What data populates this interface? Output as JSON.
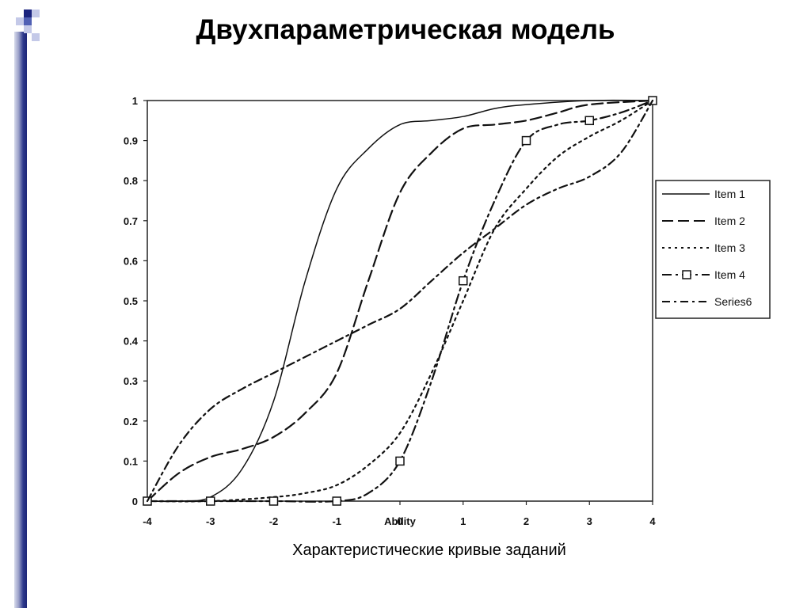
{
  "slide": {
    "title": "Двухпараметрическая модель",
    "caption": "Характеристические кривые заданий"
  },
  "chart_data": {
    "type": "line",
    "xlabel": "Ability",
    "ylabel": "",
    "xlim": [
      -4,
      4
    ],
    "ylim": [
      0,
      1
    ],
    "x_ticks": [
      "-4",
      "-3",
      "-2",
      "-1",
      "0",
      "1",
      "2",
      "3",
      "4"
    ],
    "y_ticks": [
      "0",
      "0.1",
      "0.2",
      "0.3",
      "0.4",
      "0.5",
      "0.6",
      "0.7",
      "0.8",
      "0.9",
      "1"
    ],
    "grid": false,
    "legend_position": "right",
    "series": [
      {
        "name": "Item 1",
        "style": "solid",
        "points": [
          [
            -4,
            0
          ],
          [
            -3.5,
            0
          ],
          [
            -3,
            0.01
          ],
          [
            -2.5,
            0.08
          ],
          [
            -2,
            0.25
          ],
          [
            -1.5,
            0.55
          ],
          [
            -1,
            0.78
          ],
          [
            -0.5,
            0.88
          ],
          [
            0,
            0.94
          ],
          [
            0.5,
            0.95
          ],
          [
            1,
            0.96
          ],
          [
            1.5,
            0.98
          ],
          [
            2,
            0.99
          ],
          [
            3,
            1
          ],
          [
            4,
            1
          ]
        ]
      },
      {
        "name": "Item 2",
        "style": "dashed",
        "points": [
          [
            -4,
            0
          ],
          [
            -3.5,
            0.07
          ],
          [
            -3,
            0.11
          ],
          [
            -2.5,
            0.13
          ],
          [
            -2,
            0.16
          ],
          [
            -1.5,
            0.22
          ],
          [
            -1,
            0.32
          ],
          [
            -0.5,
            0.55
          ],
          [
            0,
            0.77
          ],
          [
            0.5,
            0.87
          ],
          [
            1,
            0.93
          ],
          [
            1.5,
            0.94
          ],
          [
            2,
            0.95
          ],
          [
            2.5,
            0.97
          ],
          [
            3,
            0.99
          ],
          [
            4,
            1
          ]
        ]
      },
      {
        "name": "Item 3",
        "style": "dotted",
        "points": [
          [
            -4,
            0
          ],
          [
            -3,
            0
          ],
          [
            -2,
            0.01
          ],
          [
            -1.5,
            0.02
          ],
          [
            -1,
            0.04
          ],
          [
            -0.5,
            0.09
          ],
          [
            0,
            0.17
          ],
          [
            0.5,
            0.32
          ],
          [
            1,
            0.5
          ],
          [
            1.5,
            0.68
          ],
          [
            2,
            0.78
          ],
          [
            2.5,
            0.86
          ],
          [
            3,
            0.91
          ],
          [
            3.5,
            0.95
          ],
          [
            4,
            1
          ]
        ]
      },
      {
        "name": "Item 4",
        "style": "dash-dot-square",
        "points": [
          [
            -4,
            0
          ],
          [
            -3,
            0
          ],
          [
            -2,
            0
          ],
          [
            -1,
            0
          ],
          [
            -0.5,
            0.02
          ],
          [
            0,
            0.1
          ],
          [
            0.5,
            0.3
          ],
          [
            1,
            0.55
          ],
          [
            1.5,
            0.75
          ],
          [
            2,
            0.9
          ],
          [
            2.5,
            0.94
          ],
          [
            3,
            0.95
          ],
          [
            3.5,
            0.97
          ],
          [
            4,
            1
          ]
        ]
      },
      {
        "name": "Series6",
        "style": "dash-dot",
        "points": [
          [
            -4,
            0
          ],
          [
            -3.5,
            0.14
          ],
          [
            -3,
            0.23
          ],
          [
            -2.5,
            0.28
          ],
          [
            -2,
            0.32
          ],
          [
            -1.5,
            0.36
          ],
          [
            -1,
            0.4
          ],
          [
            -0.5,
            0.44
          ],
          [
            0,
            0.48
          ],
          [
            0.5,
            0.55
          ],
          [
            1,
            0.62
          ],
          [
            1.5,
            0.68
          ],
          [
            2,
            0.74
          ],
          [
            2.5,
            0.78
          ],
          [
            3,
            0.81
          ],
          [
            3.5,
            0.87
          ],
          [
            4,
            1
          ]
        ]
      }
    ]
  },
  "legend": {
    "items": [
      "Item 1",
      "Item 2",
      "Item 3",
      "Item 4",
      "Series6"
    ]
  }
}
